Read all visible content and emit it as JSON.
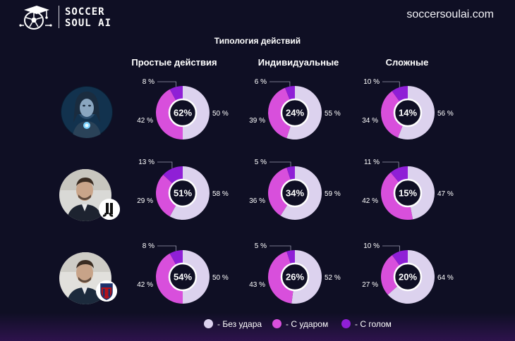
{
  "header": {
    "logo_line1": "SOCCER",
    "logo_line2": "SOUL AI",
    "site": "soccersoulai.com"
  },
  "colors": {
    "no_shot": "#dcd2ee",
    "with_shot": "#d84fdc",
    "with_goal": "#8f1fd6",
    "background": "#0f0f24"
  },
  "chart_data": {
    "type": "pie",
    "title": "Типология действий",
    "columns": [
      "Простые действия",
      "Индивидуальные",
      "Сложные"
    ],
    "series_names": [
      "- Без удара",
      "- С ударом",
      "- С голом"
    ],
    "rows": [
      {
        "subject": "ai-avatar",
        "charts": [
          {
            "center": "62%",
            "values": [
              50,
              42,
              8
            ]
          },
          {
            "center": "24%",
            "values": [
              55,
              39,
              6
            ]
          },
          {
            "center": "14%",
            "values": [
              56,
              34,
              10
            ]
          }
        ]
      },
      {
        "subject": "coach-juventus",
        "charts": [
          {
            "center": "51%",
            "values": [
              58,
              29,
              13
            ]
          },
          {
            "center": "34%",
            "values": [
              59,
              36,
              5
            ]
          },
          {
            "center": "15%",
            "values": [
              47,
              42,
              11
            ]
          }
        ]
      },
      {
        "subject": "coach-bologna",
        "charts": [
          {
            "center": "54%",
            "values": [
              50,
              42,
              8
            ]
          },
          {
            "center": "26%",
            "values": [
              52,
              43,
              5
            ]
          },
          {
            "center": "20%",
            "values": [
              64,
              27,
              10
            ]
          }
        ]
      }
    ]
  }
}
